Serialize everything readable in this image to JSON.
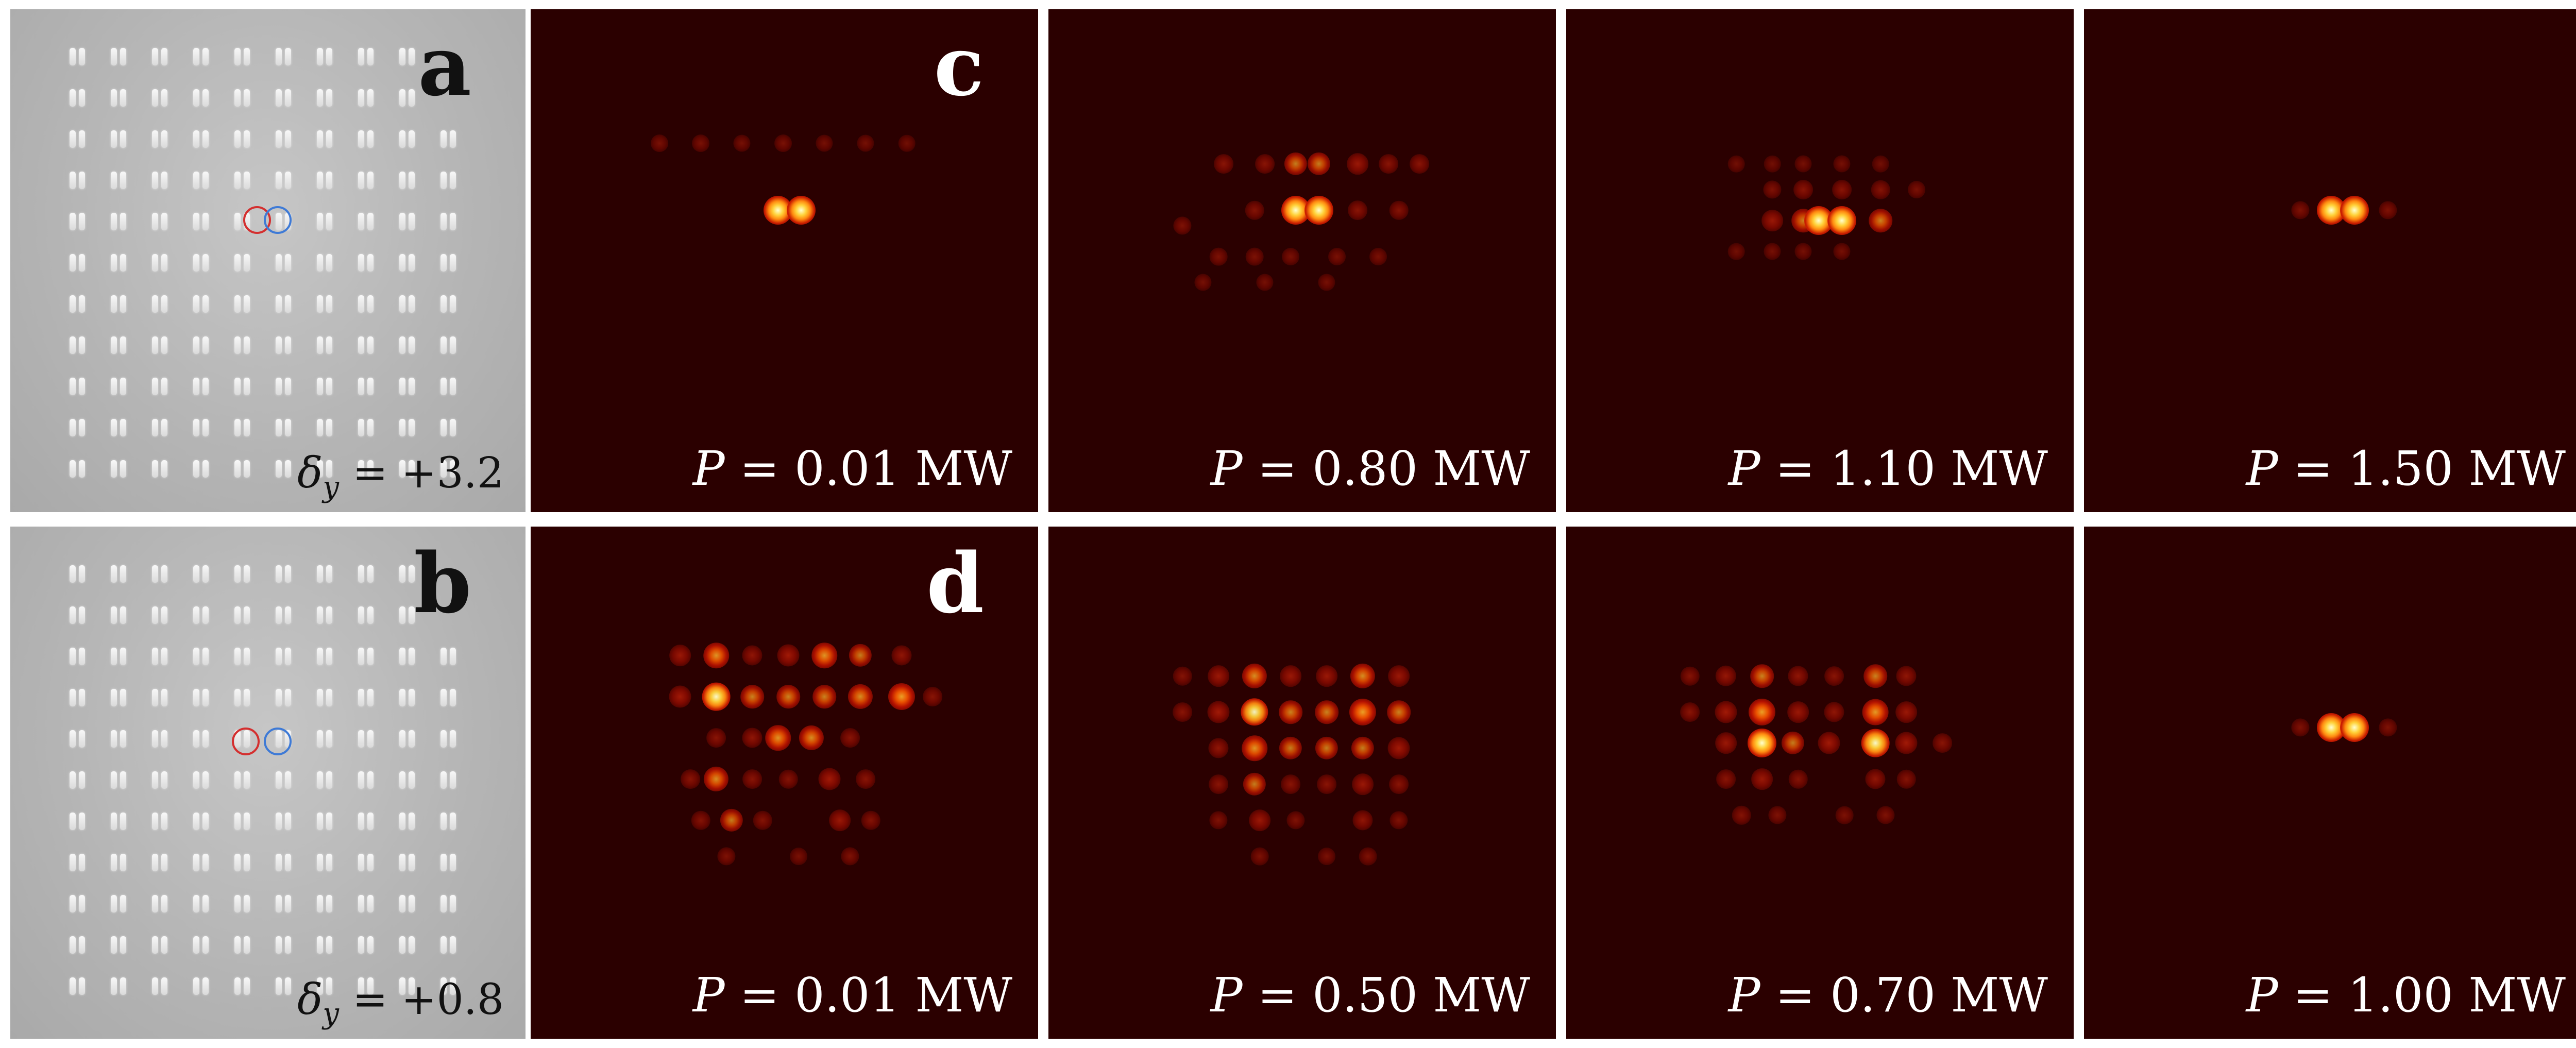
{
  "colors": {
    "micrograph_background": "#b9b9b9",
    "beam_background": "#2b0000",
    "red_marker": "#d42f2f",
    "blue_marker": "#3e7ad6"
  },
  "panels": {
    "a": {
      "letter": "a",
      "delta_symbol": "δ",
      "delta_subscript": "y",
      "delta_value": " = +3.2"
    },
    "b": {
      "letter": "b",
      "delta_symbol": "δ",
      "delta_subscript": "y",
      "delta_value": " = +0.8"
    },
    "c": {
      "letter": "c",
      "frames": [
        {
          "symbol": "P",
          "value": " = 0.01 MW",
          "pattern": "dimer_faint"
        },
        {
          "symbol": "P",
          "value": " = 0.80 MW",
          "pattern": "dimer_spread"
        },
        {
          "symbol": "P",
          "value": " = 1.10 MW",
          "pattern": "row_localized"
        },
        {
          "symbol": "P",
          "value": " = 1.50 MW",
          "pattern": "dimer_localized"
        }
      ]
    },
    "d": {
      "letter": "d",
      "frames": [
        {
          "symbol": "P",
          "value": " = 0.01 MW",
          "pattern": "wide_spread"
        },
        {
          "symbol": "P",
          "value": " = 0.50 MW",
          "pattern": "wide_spread_2"
        },
        {
          "symbol": "P",
          "value": " = 0.70 MW",
          "pattern": "medium_spread"
        },
        {
          "symbol": "P",
          "value": " = 1.00 MW",
          "pattern": "dimer_localized"
        }
      ]
    }
  }
}
